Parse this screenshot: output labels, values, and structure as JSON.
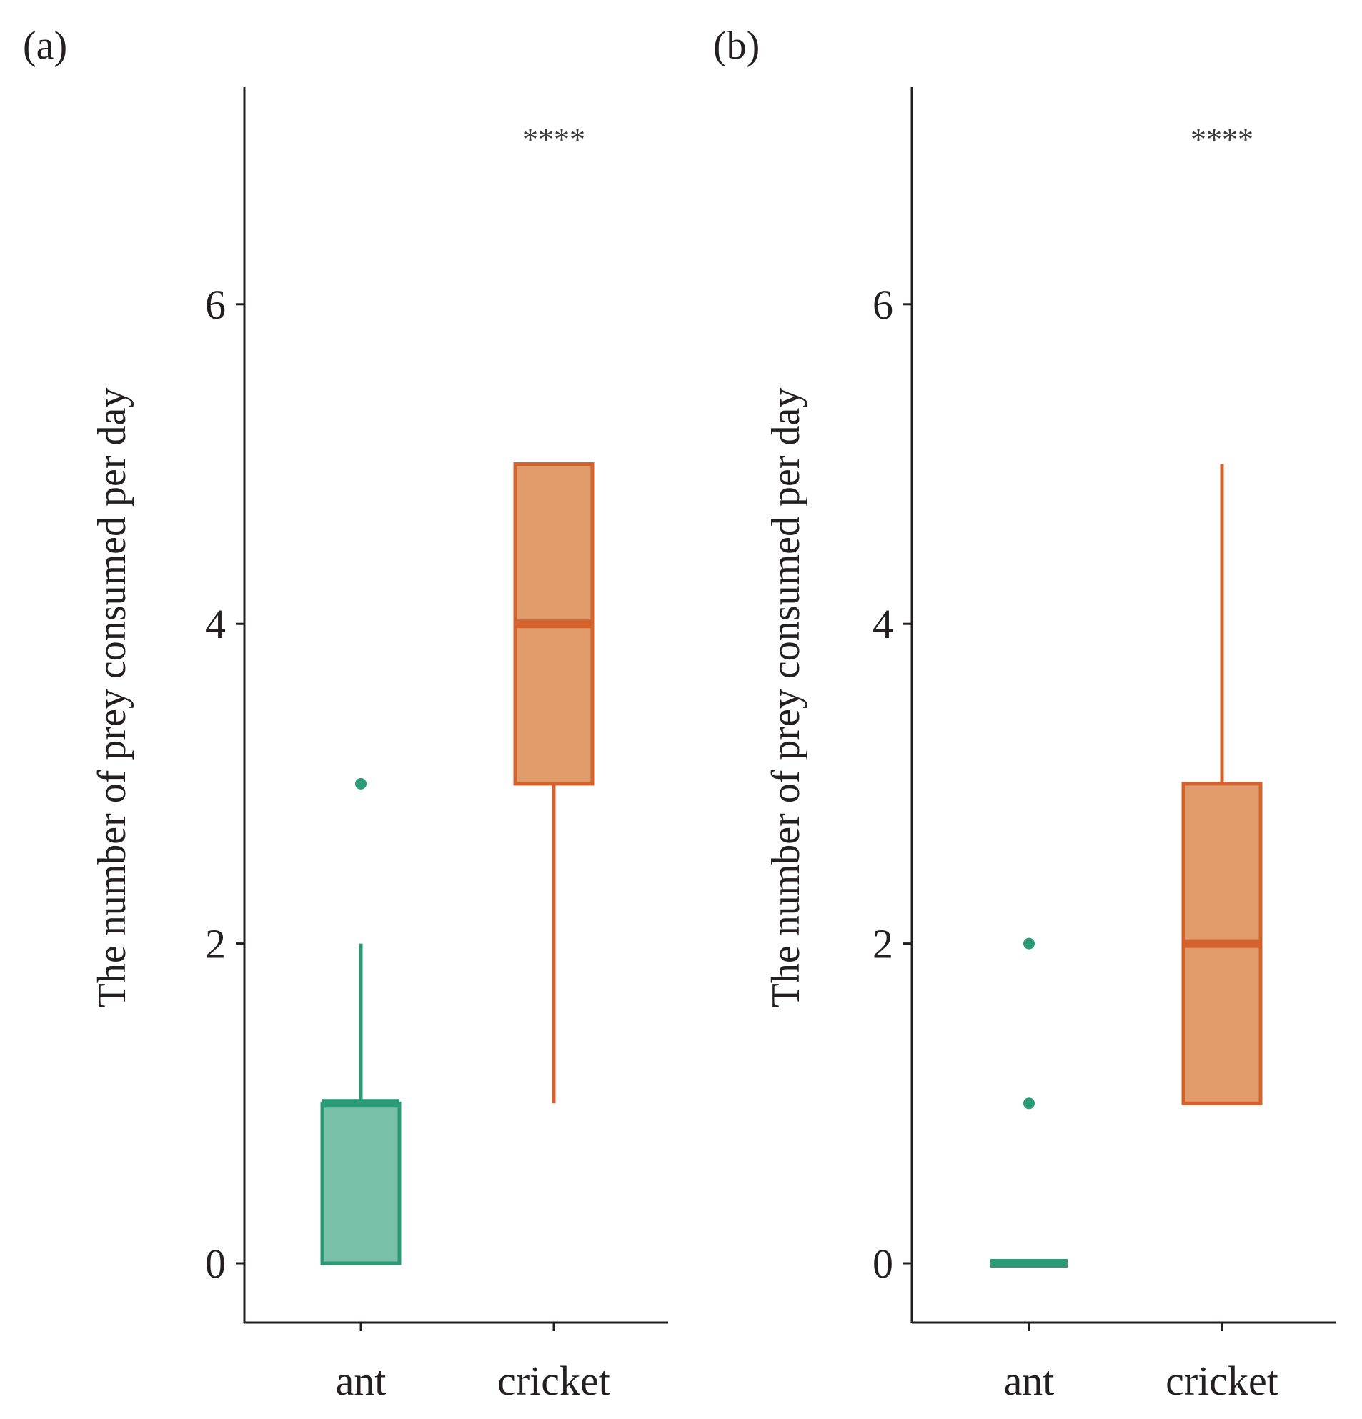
{
  "chart_data": [
    {
      "type": "boxplot",
      "panel_label": "(a)",
      "ylabel": "The number of prey consumed per day",
      "xlabel": "",
      "yticks": [
        0,
        2,
        4,
        6
      ],
      "ylim": [
        -0.35,
        7.35
      ],
      "categories": [
        "ant",
        "cricket"
      ],
      "colors": {
        "ant_fill": "#79c1a9",
        "ant_line": "#2a9a77",
        "cricket_fill": "#e09c6b",
        "cricket_line": "#d4622c"
      },
      "boxes": [
        {
          "category": "ant",
          "min": 0,
          "q1": 0,
          "median": 1,
          "q3": 1,
          "whisker_low": 0,
          "whisker_high": 2,
          "outliers": [
            3
          ]
        },
        {
          "category": "cricket",
          "min": 1,
          "q1": 3,
          "median": 4,
          "q3": 5,
          "whisker_low": 1,
          "whisker_high": 5,
          "outliers": []
        }
      ],
      "significance": {
        "category": "cricket",
        "label": "****",
        "y": 7.1
      }
    },
    {
      "type": "boxplot",
      "panel_label": "(b)",
      "ylabel": "The number of prey consumed per day",
      "xlabel": "",
      "yticks": [
        0,
        2,
        4,
        6
      ],
      "ylim": [
        -0.35,
        7.35
      ],
      "categories": [
        "ant",
        "cricket"
      ],
      "colors": {
        "ant_fill": "#79c1a9",
        "ant_line": "#2a9a77",
        "cricket_fill": "#e09c6b",
        "cricket_line": "#d4622c"
      },
      "boxes": [
        {
          "category": "ant",
          "min": 0,
          "q1": 0,
          "median": 0,
          "q3": 0,
          "whisker_low": 0,
          "whisker_high": 0,
          "outliers": [
            1,
            2
          ]
        },
        {
          "category": "cricket",
          "min": 1,
          "q1": 1,
          "median": 2,
          "q3": 3,
          "whisker_low": 1,
          "whisker_high": 5,
          "outliers": []
        }
      ],
      "significance": {
        "category": "cricket",
        "label": "****",
        "y": 7.1
      }
    }
  ]
}
